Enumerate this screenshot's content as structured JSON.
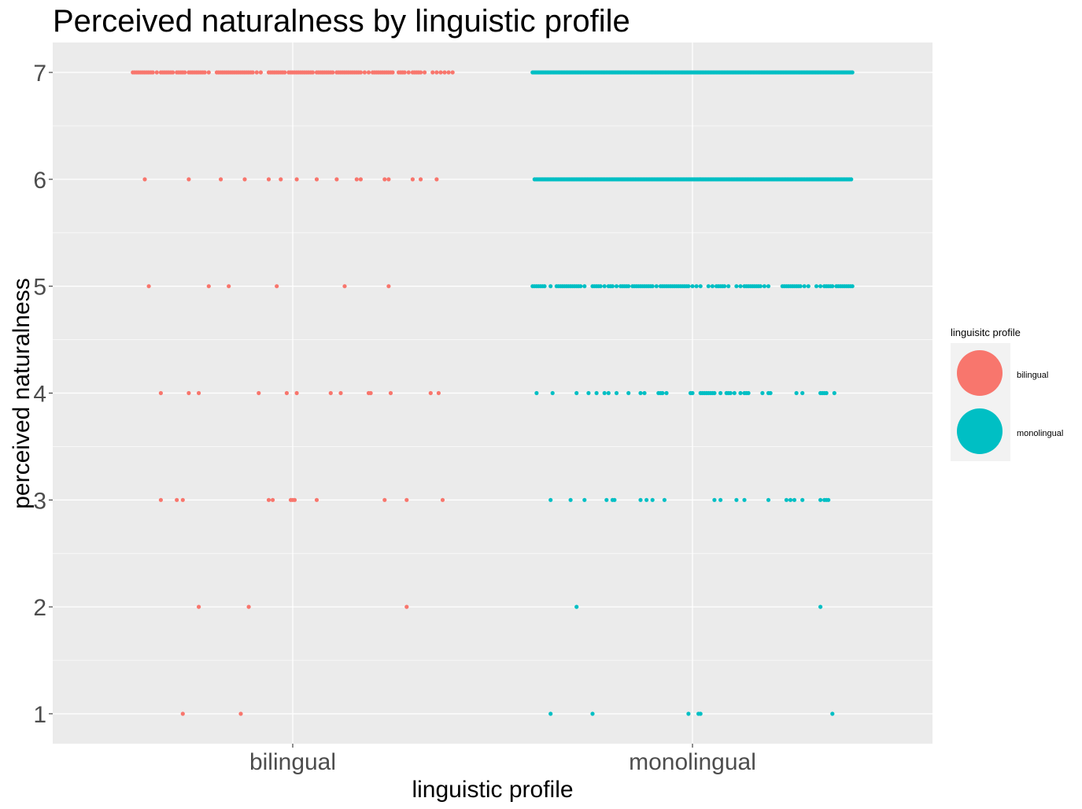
{
  "chart_data": {
    "type": "scatter",
    "title": "Perceived naturalness by linguistic profile",
    "xlabel": "linguistic profile",
    "ylabel": "perceived naturalness",
    "categories": [
      "bilingual",
      "monolingual"
    ],
    "yticks": [
      1,
      2,
      3,
      4,
      5,
      6,
      7
    ],
    "ylim": [
      0.72,
      7.28
    ],
    "grid": true,
    "legend": {
      "title": "linguisitc profile",
      "position": "right",
      "entries": [
        "bilingual",
        "monolingual"
      ]
    },
    "jitter_range": [
      -0.4,
      0.4
    ],
    "series": [
      {
        "name": "bilingual",
        "color": "#F8766D",
        "points": [
          {
            "y": 7,
            "x": [
              -0.4,
              -0.395,
              -0.39,
              -0.385,
              -0.38,
              -0.375,
              -0.37,
              -0.365,
              -0.36,
              -0.355,
              -0.35,
              -0.34,
              -0.33,
              -0.325,
              -0.32,
              -0.315,
              -0.31,
              -0.305,
              -0.3,
              -0.29,
              -0.285,
              -0.28,
              -0.275,
              -0.27,
              -0.26,
              -0.255,
              -0.25,
              -0.245,
              -0.24,
              -0.235,
              -0.23,
              -0.225,
              -0.22,
              -0.21,
              -0.19,
              -0.185,
              -0.18,
              -0.175,
              -0.17,
              -0.165,
              -0.16,
              -0.155,
              -0.15,
              -0.145,
              -0.14,
              -0.135,
              -0.13,
              -0.125,
              -0.12,
              -0.115,
              -0.11,
              -0.105,
              -0.1,
              -0.09,
              -0.08,
              -0.06,
              -0.055,
              -0.05,
              -0.045,
              -0.04,
              -0.035,
              -0.03,
              -0.025,
              -0.02,
              -0.01,
              -0.005,
              0.0,
              0.005,
              0.01,
              0.015,
              0.02,
              0.025,
              0.03,
              0.035,
              0.04,
              0.045,
              0.05,
              0.06,
              0.065,
              0.07,
              0.075,
              0.08,
              0.085,
              0.09,
              0.095,
              0.1,
              0.11,
              0.115,
              0.12,
              0.125,
              0.13,
              0.135,
              0.14,
              0.145,
              0.15,
              0.155,
              0.16,
              0.165,
              0.17,
              0.18,
              0.19,
              0.2,
              0.205,
              0.21,
              0.215,
              0.22,
              0.225,
              0.23,
              0.235,
              0.24,
              0.245,
              0.25,
              0.265,
              0.27,
              0.275,
              0.28,
              0.29,
              0.3,
              0.305,
              0.31,
              0.315,
              0.32,
              0.33,
              0.35,
              0.36,
              0.37,
              0.38,
              0.39,
              0.4
            ]
          },
          {
            "y": 6,
            "x": [
              -0.37,
              -0.26,
              -0.18,
              -0.12,
              -0.06,
              -0.03,
              0.01,
              0.06,
              0.11,
              0.16,
              0.17,
              0.23,
              0.24,
              0.3,
              0.32,
              0.36
            ]
          },
          {
            "y": 5,
            "x": [
              -0.36,
              -0.21,
              -0.16,
              -0.04,
              0.13,
              0.24
            ]
          },
          {
            "y": 4,
            "x": [
              -0.33,
              -0.26,
              -0.235,
              -0.085,
              -0.015,
              0.01,
              0.095,
              0.12,
              0.19,
              0.195,
              0.245,
              0.345,
              0.365
            ]
          },
          {
            "y": 3,
            "x": [
              -0.33,
              -0.29,
              -0.275,
              -0.06,
              -0.05,
              -0.005,
              0.0,
              0.005,
              0.06,
              0.23,
              0.285,
              0.375
            ]
          },
          {
            "y": 2,
            "x": [
              -0.235,
              -0.11,
              0.285
            ]
          },
          {
            "y": 1,
            "x": [
              -0.275,
              -0.13
            ]
          }
        ]
      },
      {
        "name": "monolingual",
        "color": "#00BFC4",
        "points": [
          {
            "y": 7,
            "x": "dense",
            "x_range": [
              -0.4,
              0.4
            ]
          },
          {
            "y": 6,
            "x": "dense",
            "x_range": [
              -0.395,
              0.4
            ]
          },
          {
            "y": 5,
            "x": [
              -0.4,
              -0.395,
              -0.39,
              -0.385,
              -0.38,
              -0.375,
              -0.37,
              -0.355,
              -0.34,
              -0.335,
              -0.33,
              -0.325,
              -0.32,
              -0.315,
              -0.31,
              -0.305,
              -0.3,
              -0.295,
              -0.29,
              -0.285,
              -0.28,
              -0.27,
              -0.25,
              -0.245,
              -0.24,
              -0.235,
              -0.23,
              -0.22,
              -0.21,
              -0.205,
              -0.2,
              -0.19,
              -0.18,
              -0.175,
              -0.17,
              -0.165,
              -0.16,
              -0.15,
              -0.145,
              -0.14,
              -0.135,
              -0.13,
              -0.125,
              -0.12,
              -0.115,
              -0.11,
              -0.105,
              -0.1,
              -0.09,
              -0.08,
              -0.075,
              -0.07,
              -0.065,
              -0.06,
              -0.055,
              -0.05,
              -0.045,
              -0.04,
              -0.035,
              -0.03,
              -0.025,
              -0.02,
              -0.015,
              -0.01,
              0.0,
              0.01,
              0.02,
              0.04,
              0.05,
              0.06,
              0.065,
              0.07,
              0.075,
              0.08,
              0.09,
              0.11,
              0.12,
              0.13,
              0.135,
              0.14,
              0.145,
              0.15,
              0.155,
              0.16,
              0.165,
              0.17,
              0.18,
              0.19,
              0.225,
              0.23,
              0.235,
              0.24,
              0.245,
              0.25,
              0.255,
              0.26,
              0.265,
              0.27,
              0.28,
              0.29,
              0.31,
              0.32,
              0.33,
              0.335,
              0.34,
              0.345,
              0.35,
              0.36,
              0.365,
              0.37,
              0.375,
              0.38,
              0.385,
              0.39,
              0.395,
              0.4
            ]
          },
          {
            "y": 4,
            "x": [
              -0.39,
              -0.35,
              -0.29,
              -0.26,
              -0.24,
              -0.22,
              -0.21,
              -0.19,
              -0.16,
              -0.13,
              -0.12,
              -0.085,
              -0.08,
              -0.075,
              -0.065,
              -0.005,
              0.0,
              0.02,
              0.025,
              0.03,
              0.035,
              0.04,
              0.045,
              0.05,
              0.055,
              0.07,
              0.085,
              0.09,
              0.095,
              0.105,
              0.12,
              0.13,
              0.135,
              0.14,
              0.175,
              0.19,
              0.195,
              0.26,
              0.275,
              0.32,
              0.325,
              0.33,
              0.335,
              0.355
            ]
          },
          {
            "y": 3,
            "x": [
              -0.355,
              -0.305,
              -0.27,
              -0.215,
              -0.2,
              -0.195,
              -0.13,
              -0.115,
              -0.1,
              -0.07,
              0.055,
              0.07,
              0.11,
              0.13,
              0.19,
              0.235,
              0.245,
              0.255,
              0.275,
              0.32,
              0.33,
              0.335,
              0.34
            ]
          },
          {
            "y": 2,
            "x": [
              -0.29,
              0.32
            ]
          },
          {
            "y": 1,
            "x": [
              -0.355,
              -0.25,
              -0.01,
              0.015,
              0.02,
              0.35
            ]
          }
        ]
      }
    ]
  }
}
